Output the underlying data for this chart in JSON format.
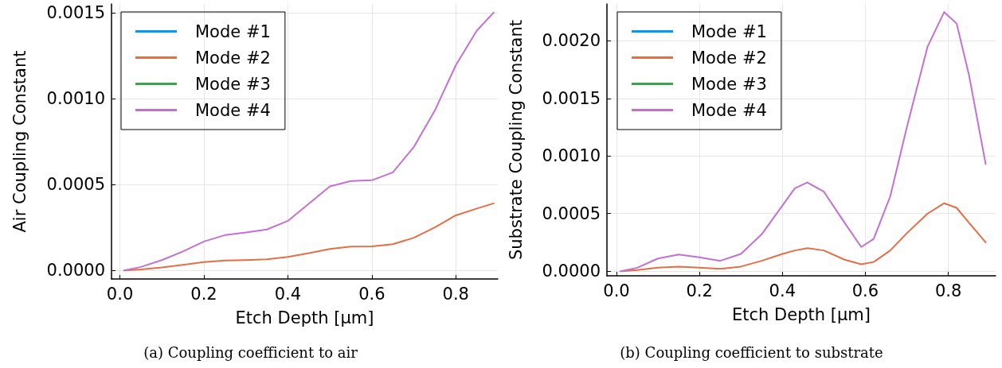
{
  "chart_data": [
    {
      "type": "line",
      "title": "(a) Coupling coefficient to air",
      "xlabel": "Etch Depth [μm]",
      "ylabel": "Air Coupling Constant",
      "xlim": [
        -0.02,
        0.9
      ],
      "ylim": [
        -5e-05,
        0.00155
      ],
      "xticks": [
        {
          "value": 0,
          "label": "0.0"
        },
        {
          "value": 0.2,
          "label": "0.2"
        },
        {
          "value": 0.4,
          "label": "0.4"
        },
        {
          "value": 0.6,
          "label": "0.6"
        },
        {
          "value": 0.8,
          "label": "0.8"
        }
      ],
      "yticks": [
        {
          "value": 0,
          "label": "0.0000"
        },
        {
          "value": 0.0005,
          "label": "0.0005"
        },
        {
          "value": 0.001,
          "label": "0.0010"
        },
        {
          "value": 0.0015,
          "label": "0.0015"
        }
      ],
      "grid": true,
      "legend": "top left",
      "marker": "none",
      "line_style": "solid",
      "x": [
        0.01,
        0.05,
        0.1,
        0.15,
        0.2,
        0.25,
        0.3,
        0.35,
        0.4,
        0.45,
        0.5,
        0.55,
        0.6,
        0.65,
        0.7,
        0.75,
        0.8,
        0.85,
        0.89
      ],
      "series": [
        {
          "name": "Mode #1",
          "color": "#009af9",
          "values": [
            null,
            null,
            null,
            null,
            null,
            null,
            null,
            null,
            null,
            null,
            null,
            null,
            null,
            null,
            null,
            null,
            null,
            null,
            null
          ]
        },
        {
          "name": "Mode #2",
          "color": "#e26f46",
          "values": [
            0,
            6e-06,
            1.7e-05,
            3.2e-05,
            4.8e-05,
            5.7e-05,
            6e-05,
            6.5e-05,
            7.8e-05,
            0.0001,
            0.000125,
            0.000138,
            0.00014,
            0.000152,
            0.00019,
            0.00025,
            0.00032,
            0.00036,
            0.00039
          ]
        },
        {
          "name": "Mode #3",
          "color": "#3da44d",
          "values": [
            null,
            null,
            null,
            null,
            null,
            null,
            null,
            null,
            null,
            null,
            null,
            null,
            null,
            null,
            null,
            null,
            null,
            null,
            null
          ]
        },
        {
          "name": "Mode #4",
          "color": "#c271d2",
          "values": [
            0,
            2e-05,
            6e-05,
            0.00011,
            0.000168,
            0.000205,
            0.00022,
            0.000238,
            0.000288,
            0.000388,
            0.000489,
            0.00052,
            0.000524,
            0.00057,
            0.000718,
            0.00093,
            0.001194,
            0.001395,
            0.0015
          ]
        }
      ]
    },
    {
      "type": "line",
      "title": "(b) Coupling coefficient to substrate",
      "xlabel": "Etch Depth [μm]",
      "ylabel": "Substrate Coupling Constant",
      "xlim": [
        -0.023,
        0.914
      ],
      "ylim": [
        -4e-05,
        0.00232
      ],
      "xticks": [
        {
          "value": 0,
          "label": "0.0"
        },
        {
          "value": 0.2,
          "label": "0.2"
        },
        {
          "value": 0.4,
          "label": "0.4"
        },
        {
          "value": 0.6,
          "label": "0.6"
        },
        {
          "value": 0.8,
          "label": "0.8"
        }
      ],
      "yticks": [
        {
          "value": 0,
          "label": "0.0000"
        },
        {
          "value": 0.0005,
          "label": "0.0005"
        },
        {
          "value": 0.001,
          "label": "0.0010"
        },
        {
          "value": 0.0015,
          "label": "0.0015"
        },
        {
          "value": 0.002,
          "label": "0.0020"
        }
      ],
      "grid": true,
      "legend": "top left",
      "marker": "none",
      "line_style": "solid",
      "x": [
        0.01,
        0.05,
        0.1,
        0.15,
        0.2,
        0.25,
        0.3,
        0.35,
        0.4,
        0.43,
        0.46,
        0.5,
        0.55,
        0.59,
        0.62,
        0.66,
        0.7,
        0.75,
        0.79,
        0.82,
        0.85,
        0.89
      ],
      "series": [
        {
          "name": "Mode #1",
          "color": "#009af9",
          "values": [
            null,
            null,
            null,
            null,
            null,
            null,
            null,
            null,
            null,
            null,
            null,
            null,
            null,
            null,
            null,
            null,
            null,
            null,
            null,
            null,
            null,
            null
          ]
        },
        {
          "name": "Mode #2",
          "color": "#e26f46",
          "values": [
            0,
            1e-05,
            3e-05,
            4e-05,
            3e-05,
            2e-05,
            4e-05,
            9e-05,
            0.00015,
            0.00018,
            0.0002,
            0.00018,
            0.0001,
            6e-05,
            8e-05,
            0.00018,
            0.00033,
            0.0005,
            0.00059,
            0.00055,
            0.00042,
            0.00025
          ]
        },
        {
          "name": "Mode #3",
          "color": "#3da44d",
          "values": [
            null,
            null,
            null,
            null,
            null,
            null,
            null,
            null,
            null,
            null,
            null,
            null,
            null,
            null,
            null,
            null,
            null,
            null,
            null,
            null,
            null,
            null
          ]
        },
        {
          "name": "Mode #4",
          "color": "#c271d2",
          "values": [
            0,
            3e-05,
            0.00011,
            0.000145,
            0.00012,
            9e-05,
            0.00015,
            0.00032,
            0.00057,
            0.00072,
            0.00077,
            0.00069,
            0.00042,
            0.00021,
            0.00028,
            0.00065,
            0.00125,
            0.00195,
            0.00225,
            0.00215,
            0.0017,
            0.00093
          ]
        }
      ]
    }
  ]
}
